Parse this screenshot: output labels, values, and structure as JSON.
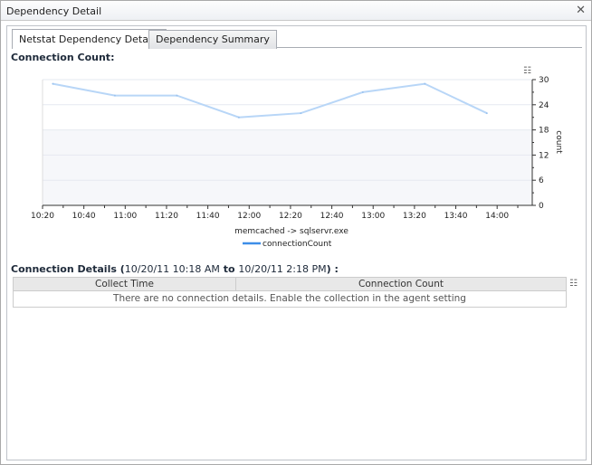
{
  "window": {
    "title": "Dependency Detail",
    "close_icon": "close-icon"
  },
  "tabs": [
    {
      "label": "Netstat Dependency Details",
      "active": true
    },
    {
      "label": "Dependency Summary",
      "active": false
    }
  ],
  "chart_section": {
    "title": "Connection Count:"
  },
  "chart_data": {
    "type": "line",
    "title": "",
    "xlabel": "memcached -> sqlservr.exe",
    "ylabel": "count",
    "x": [
      "10:25",
      "10:55",
      "11:25",
      "11:55",
      "12:25",
      "12:55",
      "13:25",
      "13:55"
    ],
    "series": [
      {
        "name": "connectionCount",
        "values": [
          29,
          26.2,
          26.2,
          21,
          22,
          27,
          29,
          22
        ],
        "color": "#b8d6f7"
      }
    ],
    "xticks": [
      "10:20",
      "10:40",
      "11:00",
      "11:20",
      "11:40",
      "12:00",
      "12:20",
      "12:40",
      "13:00",
      "13:20",
      "13:40",
      "14:00"
    ],
    "yticks": [
      0,
      6,
      12,
      18,
      24,
      30
    ],
    "ylim": [
      0,
      30
    ],
    "xlim": [
      "10:20",
      "14:17"
    ],
    "grid": true,
    "legend": "bottom-center"
  },
  "details": {
    "label": "Connection Details",
    "open": "(",
    "from": "10/20/11 10:18 AM",
    "to_word": "to",
    "to": "10/20/11 2:18 PM",
    "close": ") :",
    "columns": [
      "Collect Time",
      "Connection Count"
    ],
    "empty_message": "There are no connection details. Enable the collection in the agent setting"
  }
}
